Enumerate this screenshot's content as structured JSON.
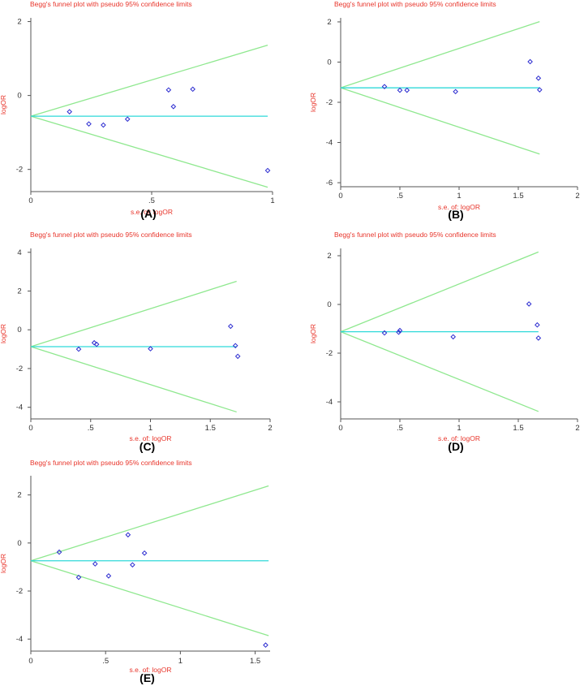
{
  "figure": {
    "title_color": "#e8352b",
    "axis_color": "#555555",
    "limit_color": "#8fe88f",
    "mean_color": "#2fd9d9",
    "point_color": "#2b2bd0"
  },
  "chart_data": [
    {
      "id": "A",
      "type": "scatter",
      "panel_label": "(A)",
      "title": "Begg's funnel plot with pseudo 95% confidence limits",
      "xlabel": "s.e. of: logOR",
      "ylabel": "logOR",
      "xlim": [
        0,
        1
      ],
      "ylim": [
        -2.6,
        2.1
      ],
      "xticks": [
        {
          "v": 0,
          "t": "0"
        },
        {
          "v": 0.5,
          "t": ".5"
        },
        {
          "v": 1,
          "t": "1"
        }
      ],
      "yticks": [
        {
          "v": -2,
          "t": "-2"
        },
        {
          "v": 0,
          "t": "0"
        },
        {
          "v": 2,
          "t": "2"
        }
      ],
      "pooled_logOR": -0.56,
      "se_max": 0.98,
      "points": [
        {
          "x": 0.16,
          "y": -0.44
        },
        {
          "x": 0.24,
          "y": -0.77
        },
        {
          "x": 0.3,
          "y": -0.8
        },
        {
          "x": 0.4,
          "y": -0.64
        },
        {
          "x": 0.57,
          "y": 0.15
        },
        {
          "x": 0.59,
          "y": -0.3
        },
        {
          "x": 0.67,
          "y": 0.17
        },
        {
          "x": 0.98,
          "y": -2.03
        }
      ]
    },
    {
      "id": "B",
      "type": "scatter",
      "panel_label": "(B)",
      "title": "Begg's funnel plot with pseudo 95% confidence limits",
      "xlabel": "s.e. of: logOR",
      "ylabel": "logOR",
      "xlim": [
        0,
        2
      ],
      "ylim": [
        -6.2,
        2.2
      ],
      "xticks": [
        {
          "v": 0,
          "t": "0"
        },
        {
          "v": 0.5,
          "t": ".5"
        },
        {
          "v": 1,
          "t": "1"
        },
        {
          "v": 1.5,
          "t": "1.5"
        },
        {
          "v": 2,
          "t": "2"
        }
      ],
      "yticks": [
        {
          "v": -6,
          "t": "-6"
        },
        {
          "v": -4,
          "t": "-4"
        },
        {
          "v": -2,
          "t": "-2"
        },
        {
          "v": 0,
          "t": "0"
        },
        {
          "v": 2,
          "t": "2"
        }
      ],
      "pooled_logOR": -1.28,
      "se_max": 1.68,
      "points": [
        {
          "x": 0.37,
          "y": -1.22
        },
        {
          "x": 0.5,
          "y": -1.4
        },
        {
          "x": 0.56,
          "y": -1.4
        },
        {
          "x": 0.97,
          "y": -1.47
        },
        {
          "x": 1.6,
          "y": 0.02
        },
        {
          "x": 1.67,
          "y": -0.8
        },
        {
          "x": 1.68,
          "y": -1.38
        }
      ]
    },
    {
      "id": "C",
      "type": "scatter",
      "panel_label": "(C)",
      "title": "Begg's funnel plot with pseudo 95% confidence limits",
      "xlabel": "s.e. of: logOR",
      "ylabel": "logOR",
      "xlim": [
        0,
        2
      ],
      "ylim": [
        -4.6,
        4.2
      ],
      "xticks": [
        {
          "v": 0,
          "t": "0"
        },
        {
          "v": 0.5,
          "t": ".5"
        },
        {
          "v": 1,
          "t": "1"
        },
        {
          "v": 1.5,
          "t": "1.5"
        },
        {
          "v": 2,
          "t": "2"
        }
      ],
      "yticks": [
        {
          "v": -4,
          "t": "-4"
        },
        {
          "v": -2,
          "t": "-2"
        },
        {
          "v": 0,
          "t": "0"
        },
        {
          "v": 2,
          "t": "2"
        },
        {
          "v": 4,
          "t": "4"
        }
      ],
      "pooled_logOR": -0.87,
      "se_max": 1.72,
      "points": [
        {
          "x": 0.4,
          "y": -1.0
        },
        {
          "x": 0.53,
          "y": -0.67
        },
        {
          "x": 0.55,
          "y": -0.75
        },
        {
          "x": 1.0,
          "y": -0.98
        },
        {
          "x": 1.67,
          "y": 0.18
        },
        {
          "x": 1.71,
          "y": -0.82
        },
        {
          "x": 1.73,
          "y": -1.37
        }
      ]
    },
    {
      "id": "D",
      "type": "scatter",
      "panel_label": "(D)",
      "title": "Begg's funnel plot with pseudo 95% confidence limits",
      "xlabel": "s.e. of: logOR",
      "ylabel": "logOR",
      "xlim": [
        0,
        2
      ],
      "ylim": [
        -4.7,
        2.3
      ],
      "xticks": [
        {
          "v": 0,
          "t": "0"
        },
        {
          "v": 0.5,
          "t": ".5"
        },
        {
          "v": 1,
          "t": "1"
        },
        {
          "v": 1.5,
          "t": "1.5"
        },
        {
          "v": 2,
          "t": "2"
        }
      ],
      "yticks": [
        {
          "v": -4,
          "t": "-4"
        },
        {
          "v": -2,
          "t": "-2"
        },
        {
          "v": 0,
          "t": "0"
        },
        {
          "v": 2,
          "t": "2"
        }
      ],
      "pooled_logOR": -1.12,
      "se_max": 1.67,
      "points": [
        {
          "x": 0.37,
          "y": -1.17
        },
        {
          "x": 0.49,
          "y": -1.14
        },
        {
          "x": 0.5,
          "y": -1.07
        },
        {
          "x": 0.95,
          "y": -1.33
        },
        {
          "x": 1.59,
          "y": 0.02
        },
        {
          "x": 1.66,
          "y": -0.84
        },
        {
          "x": 1.67,
          "y": -1.38
        }
      ]
    },
    {
      "id": "E",
      "type": "scatter",
      "panel_label": "(E)",
      "title": "Begg's funnel plot with pseudo 95% confidence limits",
      "xlabel": "s.e. of: logOR",
      "ylabel": "logOR",
      "xlim": [
        0,
        1.6
      ],
      "ylim": [
        -4.5,
        2.8
      ],
      "xticks": [
        {
          "v": 0,
          "t": "0"
        },
        {
          "v": 0.5,
          "t": ".5"
        },
        {
          "v": 1,
          "t": "1"
        },
        {
          "v": 1.5,
          "t": "1.5"
        }
      ],
      "yticks": [
        {
          "v": -4,
          "t": "-4"
        },
        {
          "v": -2,
          "t": "-2"
        },
        {
          "v": 0,
          "t": "0"
        },
        {
          "v": 2,
          "t": "2"
        }
      ],
      "pooled_logOR": -0.74,
      "se_max": 1.59,
      "points": [
        {
          "x": 0.19,
          "y": -0.38
        },
        {
          "x": 0.32,
          "y": -1.43
        },
        {
          "x": 0.43,
          "y": -0.87
        },
        {
          "x": 0.52,
          "y": -1.37
        },
        {
          "x": 0.65,
          "y": 0.34
        },
        {
          "x": 0.68,
          "y": -0.91
        },
        {
          "x": 0.76,
          "y": -0.42
        },
        {
          "x": 1.57,
          "y": -4.25
        }
      ]
    }
  ]
}
